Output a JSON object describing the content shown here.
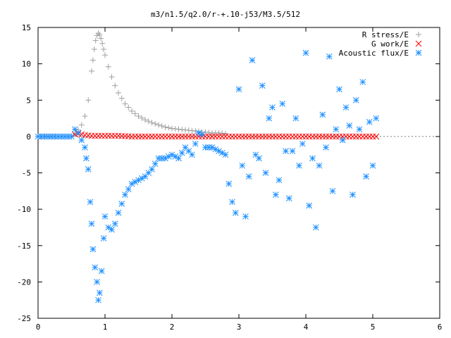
{
  "chart_data": {
    "type": "scatter",
    "title": "m3/n1.5/q2.0/r-+.10-j53/M3.5/512",
    "xlabel": "",
    "ylabel": "",
    "xlim": [
      0,
      6
    ],
    "ylim": [
      -25,
      15
    ],
    "x_ticks": [
      0,
      1,
      2,
      3,
      4,
      5,
      6
    ],
    "y_ticks": [
      -25,
      -20,
      -15,
      -10,
      -5,
      0,
      5,
      10,
      15
    ],
    "grid": false,
    "legend": "top-right",
    "series": [
      {
        "name": "R stress/E",
        "marker": "plus",
        "color": "#a0a0a0",
        "x": [
          0.0,
          0.3,
          0.5,
          0.55,
          0.6,
          0.65,
          0.7,
          0.75,
          0.8,
          0.82,
          0.84,
          0.86,
          0.88,
          0.9,
          0.92,
          0.94,
          0.96,
          0.98,
          1.0,
          1.05,
          1.1,
          1.15,
          1.2,
          1.3,
          1.4,
          1.5,
          1.6,
          1.7,
          1.8,
          1.9,
          2.0,
          2.1,
          2.2,
          2.3,
          2.4,
          2.45,
          2.5,
          2.6,
          2.7,
          2.8
        ],
        "y": [
          0.0,
          0.0,
          0.0,
          0.4,
          0.9,
          1.6,
          2.8,
          5.0,
          9.0,
          10.5,
          12.0,
          13.2,
          13.9,
          14.2,
          14.0,
          13.5,
          12.8,
          12.0,
          11.2,
          9.6,
          8.2,
          7.0,
          6.0,
          4.5,
          3.5,
          2.8,
          2.3,
          1.9,
          1.6,
          1.3,
          1.1,
          1.0,
          0.9,
          0.8,
          0.7,
          0.6,
          0.6,
          0.5,
          0.5,
          0.4
        ]
      },
      {
        "name": "G work/E",
        "marker": "cross",
        "color": "#ff0000",
        "x": [
          0.55,
          0.6,
          0.7,
          0.8,
          0.9,
          1.0,
          1.2,
          1.4,
          1.6,
          1.8,
          2.0,
          2.2,
          2.4,
          2.6,
          2.8,
          3.0,
          3.2,
          3.4,
          3.6,
          3.8,
          4.0,
          4.2,
          4.4,
          4.6,
          4.8,
          5.0,
          5.05
        ],
        "y": [
          0.3,
          0.4,
          0.2,
          0.1,
          0.1,
          0.1,
          0.1,
          0.0,
          0.0,
          0.0,
          0.0,
          0.0,
          0.0,
          0.0,
          0.0,
          0.0,
          0.0,
          0.0,
          0.0,
          0.0,
          0.0,
          0.0,
          0.0,
          0.0,
          0.0,
          0.0,
          0.0
        ]
      },
      {
        "name": "Acoustic flux/E",
        "marker": "asterisk",
        "color": "#1e90ff",
        "x": [
          0.0,
          0.2,
          0.4,
          0.5,
          0.55,
          0.6,
          0.65,
          0.7,
          0.72,
          0.75,
          0.78,
          0.8,
          0.82,
          0.85,
          0.88,
          0.9,
          0.92,
          0.95,
          0.98,
          1.0,
          1.05,
          1.1,
          1.15,
          1.2,
          1.3,
          1.4,
          1.5,
          1.6,
          1.7,
          1.8,
          1.9,
          2.0,
          2.1,
          2.2,
          2.3,
          2.4,
          2.45,
          2.5,
          2.6,
          2.7,
          2.8,
          2.85,
          2.9,
          2.95,
          3.0,
          3.05,
          3.1,
          3.15,
          3.2,
          3.25,
          3.3,
          3.35,
          3.4,
          3.45,
          3.5,
          3.55,
          3.6,
          3.65,
          3.7,
          3.75,
          3.8,
          3.85,
          3.9,
          3.95,
          4.0,
          4.05,
          4.1,
          4.15,
          4.2,
          4.25,
          4.3,
          4.35,
          4.4,
          4.45,
          4.5,
          4.55,
          4.6,
          4.65,
          4.7,
          4.75,
          4.8,
          4.85,
          4.9,
          4.95,
          5.0,
          5.05
        ],
        "y": [
          0.0,
          0.0,
          0.0,
          0.0,
          1.0,
          0.5,
          -0.5,
          -1.5,
          -3.0,
          -4.5,
          -9.0,
          -12.0,
          -15.5,
          -18.0,
          -20.0,
          -22.5,
          -21.5,
          -18.5,
          -14.0,
          -11.0,
          -12.5,
          -12.8,
          -12.0,
          -10.5,
          -8.0,
          -6.5,
          -6.0,
          -5.5,
          -4.5,
          -3.0,
          -3.0,
          -2.5,
          -3.0,
          -1.5,
          -2.5,
          0.5,
          0.3,
          -1.5,
          -1.5,
          -2.0,
          -2.5,
          -6.5,
          -9.0,
          -10.5,
          6.5,
          -4.0,
          -11.0,
          -5.5,
          10.5,
          -2.5,
          -3.0,
          7.0,
          -5.0,
          2.5,
          4.0,
          -8.0,
          -6.0,
          4.5,
          -2.0,
          -8.5,
          -2.0,
          2.5,
          -4.0,
          -1.0,
          11.5,
          -9.5,
          -3.0,
          -12.5,
          -4.0,
          3.0,
          -1.5,
          11.0,
          -7.5,
          1.0,
          6.5,
          -0.5,
          4.0,
          1.5,
          -8.0,
          5.0,
          1.0,
          7.5,
          -5.5,
          2.0,
          -4.0,
          2.5
        ]
      }
    ]
  }
}
